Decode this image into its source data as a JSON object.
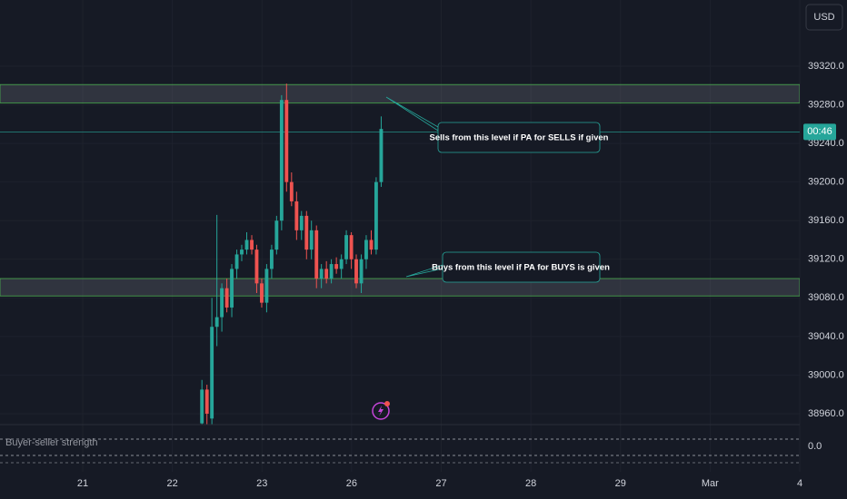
{
  "chart_data": {
    "type": "candlestick",
    "currency": "USD",
    "up_color": "#26a69a",
    "down_color": "#ef5350",
    "xlim": [
      -0.923,
      8.0
    ],
    "xticks": [
      {
        "value": 0,
        "label": "21"
      },
      {
        "value": 1,
        "label": "22"
      },
      {
        "value": 2,
        "label": "23"
      },
      {
        "value": 3,
        "label": "26"
      },
      {
        "value": 4,
        "label": "27"
      },
      {
        "value": 5,
        "label": "28"
      },
      {
        "value": 6,
        "label": "29"
      },
      {
        "value": 7,
        "label": "Mar"
      },
      {
        "value": 8,
        "label": "4"
      }
    ],
    "ylim": [
      38948.7,
      39388.6
    ],
    "yticks": [
      {
        "value": 38960,
        "label": "38960.0"
      },
      {
        "value": 39000,
        "label": "39000.0"
      },
      {
        "value": 39040,
        "label": "39040.0"
      },
      {
        "value": 39080,
        "label": "39080.0"
      },
      {
        "value": 39120,
        "label": "39120.0"
      },
      {
        "value": 39160,
        "label": "39160.0"
      },
      {
        "value": 39200,
        "label": "39200.0"
      },
      {
        "value": 39240,
        "label": "39240.0"
      },
      {
        "value": 39280,
        "label": "39280.0"
      },
      {
        "value": 39320,
        "label": "39320.0"
      }
    ],
    "grid": true,
    "x": [
      1.33,
      1.386,
      1.441,
      1.497,
      1.552,
      1.608,
      1.663,
      1.719,
      1.774,
      1.83,
      1.886,
      1.941,
      1.997,
      2.052,
      2.108,
      2.163,
      2.219,
      2.274,
      2.33,
      2.386,
      2.441,
      2.497,
      2.552,
      2.608,
      2.663,
      2.719,
      2.774,
      2.83,
      2.886,
      2.941,
      2.997,
      3.052,
      3.108,
      3.163,
      3.219,
      3.274,
      3.33
    ],
    "open": [
      38950,
      38985,
      38955,
      39050,
      39060,
      39090,
      39070,
      39110,
      39125,
      39130,
      39140,
      39130,
      39095,
      39075,
      39110,
      39130,
      39160,
      39285,
      39200,
      39180,
      39150,
      39165,
      39130,
      39150,
      39100,
      39110,
      39100,
      39115,
      39110,
      39120,
      39145,
      39120,
      39095,
      39120,
      39140,
      39130,
      39200
    ],
    "high": [
      38995,
      38990,
      39080,
      39166,
      39095,
      39100,
      39115,
      39130,
      39135,
      39148,
      39145,
      39135,
      39100,
      39115,
      39135,
      39165,
      39290,
      39302,
      39210,
      39190,
      39170,
      39170,
      39160,
      39155,
      39115,
      39118,
      39120,
      39122,
      39125,
      39150,
      39148,
      39125,
      39125,
      39145,
      39150,
      39205,
      39268
    ],
    "low": [
      38940,
      38945,
      38945,
      39030,
      39045,
      39065,
      39060,
      39100,
      39118,
      39125,
      39125,
      39085,
      39070,
      39065,
      39100,
      39125,
      39150,
      39190,
      39175,
      39140,
      39140,
      39120,
      39120,
      39090,
      39090,
      39095,
      39095,
      39105,
      39100,
      39115,
      39110,
      39090,
      39085,
      39110,
      39125,
      39125,
      39195
    ],
    "close": [
      38985,
      38960,
      39050,
      39060,
      39090,
      39070,
      39110,
      39125,
      39130,
      39140,
      39130,
      39095,
      39075,
      39110,
      39130,
      39160,
      39285,
      39200,
      39180,
      39150,
      39165,
      39130,
      39150,
      39100,
      39110,
      39100,
      39115,
      39110,
      39120,
      39145,
      39120,
      39095,
      39120,
      39140,
      39130,
      39200,
      39255
    ],
    "zones": [
      {
        "low": 39282,
        "high": 39301,
        "color": "#4caf50"
      },
      {
        "low": 39082,
        "high": 39100,
        "color": "#4caf50"
      }
    ],
    "last_price": 39252,
    "last_price_label": "00:46",
    "annotations": [
      "Sells from this level if PA for SELLS if given",
      "Buys from this level if PA for BUYS is given"
    ],
    "indicator": {
      "name": "Buyer-seller strength",
      "yticks": [
        {
          "value": 0,
          "label": "0.0"
        }
      ]
    }
  }
}
